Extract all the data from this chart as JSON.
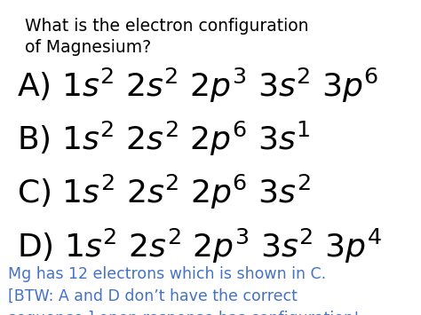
{
  "background_color": "#ffffff",
  "title_line1": "What is the electron configuration",
  "title_line2": "of Magnesium?",
  "title_color": "#000000",
  "title_fontsize": 13.5,
  "options": [
    {
      "label": "A) $1s^2\\ 2s^2\\ 2p^3\\ 3s^2\\ 3p^6$"
    },
    {
      "label": "B) $1s^2\\ 2s^2\\ 2p^6\\ 3s^1$"
    },
    {
      "label": "C) $1s^2\\ 2s^2\\ 2p^6\\ 3s^2$"
    },
    {
      "label": "D) $1s^2\\ 2s^2\\ 2p^3\\ 3s^2\\ 3p^4$"
    }
  ],
  "options_color": "#000000",
  "options_fontsize": 26,
  "footer_line1": "Mg has 12 electrons which is shown in C.",
  "footer_line2": "[BTW: A and D don’t have the correct",
  "footer_line3": "sequence.] open response has configuration!",
  "footer_color": "#4472c4",
  "footer_fontsize": 12.5
}
